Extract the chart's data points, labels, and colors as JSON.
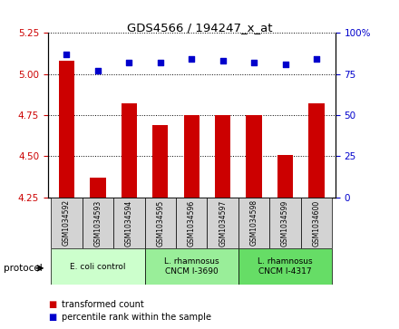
{
  "title": "GDS4566 / 194247_x_at",
  "samples": [
    "GSM1034592",
    "GSM1034593",
    "GSM1034594",
    "GSM1034595",
    "GSM1034596",
    "GSM1034597",
    "GSM1034598",
    "GSM1034599",
    "GSM1034600"
  ],
  "transformed_counts": [
    5.08,
    4.37,
    4.82,
    4.69,
    4.75,
    4.75,
    4.75,
    4.51,
    4.82
  ],
  "percentile_ranks": [
    87,
    77,
    82,
    82,
    84,
    83,
    82,
    81,
    84
  ],
  "ylim_left": [
    4.25,
    5.25
  ],
  "ylim_right": [
    0,
    100
  ],
  "yticks_left": [
    4.25,
    4.5,
    4.75,
    5.0,
    5.25
  ],
  "yticks_right": [
    0,
    25,
    50,
    75,
    100
  ],
  "bar_color": "#cc0000",
  "dot_color": "#0000cc",
  "bar_width": 0.5,
  "groups": [
    {
      "label": "E. coli control",
      "indices": [
        0,
        1,
        2
      ],
      "color": "#ccffcc"
    },
    {
      "label": "L. rhamnosus\nCNCM I-3690",
      "indices": [
        3,
        4,
        5
      ],
      "color": "#99ee99"
    },
    {
      "label": "L. rhamnosus\nCNCM I-4317",
      "indices": [
        6,
        7,
        8
      ],
      "color": "#66dd66"
    }
  ],
  "legend_bar_label": "transformed count",
  "legend_dot_label": "percentile rank within the sample",
  "protocol_label": "protocol",
  "tick_label_color_left": "#cc0000",
  "tick_label_color_right": "#0000cc",
  "ybase": 4.25
}
